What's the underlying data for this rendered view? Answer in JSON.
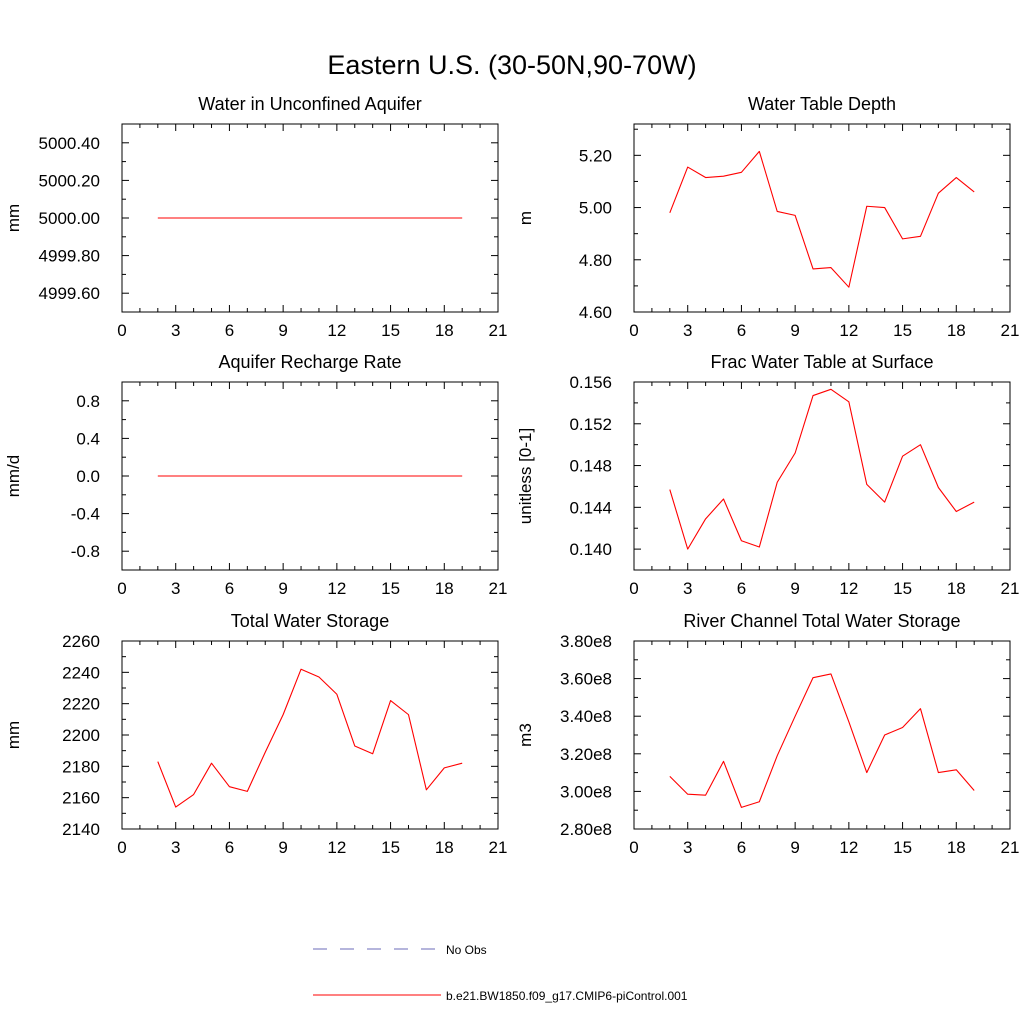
{
  "figure": {
    "title": "Eastern U.S. (30-50N,90-70W)"
  },
  "legend": {
    "entries": [
      {
        "label": "No Obs",
        "color": "#6b6bb8",
        "style": "dashed"
      },
      {
        "label": "b.e21.BW1850.f09_g17.CMIP6-piControl.001",
        "color": "#ff0000",
        "style": "solid"
      }
    ]
  },
  "chart_data": [
    {
      "type": "line",
      "title": "Water in Unconfined Aquifer",
      "xlabel": "",
      "ylabel": "mm",
      "xlim": [
        0,
        21
      ],
      "ylim": [
        4999.5,
        5000.5
      ],
      "xticks": [
        0,
        3,
        6,
        9,
        12,
        15,
        18,
        21
      ],
      "xtick_labels": [
        "0",
        "3",
        "6",
        "9",
        "12",
        "15",
        "18",
        "21"
      ],
      "yticks": [
        4999.6,
        4999.8,
        5000.0,
        5000.2,
        5000.4
      ],
      "ytick_labels": [
        "4999.60",
        "4999.80",
        "5000.00",
        "5000.20",
        "5000.40"
      ],
      "series": [
        {
          "name": "b.e21.BW1850.f09_g17.CMIP6-piControl.001",
          "color": "#ff0000",
          "x": [
            2,
            3,
            4,
            5,
            6,
            7,
            8,
            9,
            10,
            11,
            12,
            13,
            14,
            15,
            16,
            17,
            18,
            19
          ],
          "y": [
            5000,
            5000,
            5000,
            5000,
            5000,
            5000,
            5000,
            5000,
            5000,
            5000,
            5000,
            5000,
            5000,
            5000,
            5000,
            5000,
            5000,
            5000
          ]
        }
      ]
    },
    {
      "type": "line",
      "title": "Water Table Depth",
      "xlabel": "",
      "ylabel": "m",
      "xlim": [
        0,
        21
      ],
      "ylim": [
        4.6,
        5.32
      ],
      "xticks": [
        0,
        3,
        6,
        9,
        12,
        15,
        18,
        21
      ],
      "xtick_labels": [
        "0",
        "3",
        "6",
        "9",
        "12",
        "15",
        "18",
        "21"
      ],
      "yticks": [
        4.6,
        4.8,
        5.0,
        5.2
      ],
      "ytick_labels": [
        "4.60",
        "4.80",
        "5.00",
        "5.20"
      ],
      "series": [
        {
          "name": "b.e21.BW1850.f09_g17.CMIP6-piControl.001",
          "color": "#ff0000",
          "x": [
            2,
            3,
            4,
            5,
            6,
            7,
            8,
            9,
            10,
            11,
            12,
            13,
            14,
            15,
            16,
            17,
            18,
            19
          ],
          "y": [
            4.98,
            5.155,
            5.115,
            5.12,
            5.135,
            5.215,
            4.985,
            4.97,
            4.765,
            4.77,
            4.695,
            5.005,
            5.0,
            4.88,
            4.89,
            5.055,
            5.115,
            5.06
          ]
        }
      ]
    },
    {
      "type": "line",
      "title": "Aquifer Recharge Rate",
      "xlabel": "",
      "ylabel": "mm/d",
      "xlim": [
        0,
        21
      ],
      "ylim": [
        -1.0,
        1.0
      ],
      "xticks": [
        0,
        3,
        6,
        9,
        12,
        15,
        18,
        21
      ],
      "xtick_labels": [
        "0",
        "3",
        "6",
        "9",
        "12",
        "15",
        "18",
        "21"
      ],
      "yticks": [
        -0.8,
        -0.4,
        0.0,
        0.4,
        0.8
      ],
      "ytick_labels": [
        "-0.8",
        "-0.4",
        "0.0",
        "0.4",
        "0.8"
      ],
      "series": [
        {
          "name": "b.e21.BW1850.f09_g17.CMIP6-piControl.001",
          "color": "#ff0000",
          "x": [
            2,
            3,
            4,
            5,
            6,
            7,
            8,
            9,
            10,
            11,
            12,
            13,
            14,
            15,
            16,
            17,
            18,
            19
          ],
          "y": [
            0,
            0,
            0,
            0,
            0,
            0,
            0,
            0,
            0,
            0,
            0,
            0,
            0,
            0,
            0,
            0,
            0,
            0
          ]
        }
      ]
    },
    {
      "type": "line",
      "title": "Frac Water Table at Surface",
      "xlabel": "",
      "ylabel": "unitless [0-1]",
      "xlim": [
        0,
        21
      ],
      "ylim": [
        0.138,
        0.156
      ],
      "xticks": [
        0,
        3,
        6,
        9,
        12,
        15,
        18,
        21
      ],
      "xtick_labels": [
        "0",
        "3",
        "6",
        "9",
        "12",
        "15",
        "18",
        "21"
      ],
      "yticks": [
        0.14,
        0.144,
        0.148,
        0.152,
        0.156
      ],
      "ytick_labels": [
        "0.140",
        "0.144",
        "0.148",
        "0.152",
        "0.156"
      ],
      "series": [
        {
          "name": "b.e21.BW1850.f09_g17.CMIP6-piControl.001",
          "color": "#ff0000",
          "x": [
            2,
            3,
            4,
            5,
            6,
            7,
            8,
            9,
            10,
            11,
            12,
            13,
            14,
            15,
            16,
            17,
            18,
            19
          ],
          "y": [
            0.1457,
            0.14,
            0.1429,
            0.1448,
            0.1408,
            0.1402,
            0.1464,
            0.1492,
            0.1547,
            0.1553,
            0.1541,
            0.1462,
            0.1445,
            0.1489,
            0.15,
            0.1459,
            0.1436,
            0.1445
          ]
        }
      ]
    },
    {
      "type": "line",
      "title": "Total Water Storage",
      "xlabel": "",
      "ylabel": "mm",
      "xlim": [
        0,
        21
      ],
      "ylim": [
        2140,
        2260
      ],
      "xticks": [
        0,
        3,
        6,
        9,
        12,
        15,
        18,
        21
      ],
      "xtick_labels": [
        "0",
        "3",
        "6",
        "9",
        "12",
        "15",
        "18",
        "21"
      ],
      "yticks": [
        2140,
        2160,
        2180,
        2200,
        2220,
        2240,
        2260
      ],
      "ytick_labels": [
        "2140",
        "2160",
        "2180",
        "2200",
        "2220",
        "2240",
        "2260"
      ],
      "series": [
        {
          "name": "b.e21.BW1850.f09_g17.CMIP6-piControl.001",
          "color": "#ff0000",
          "x": [
            2,
            3,
            4,
            5,
            6,
            7,
            8,
            9,
            10,
            11,
            12,
            13,
            14,
            15,
            16,
            17,
            18,
            19
          ],
          "y": [
            2183,
            2154,
            2162,
            2182,
            2167,
            2164,
            2189,
            2213,
            2242,
            2237,
            2226,
            2193,
            2188,
            2222,
            2213,
            2165,
            2179,
            2182
          ]
        }
      ]
    },
    {
      "type": "line",
      "title": "River Channel Total Water Storage",
      "xlabel": "",
      "ylabel": "m3",
      "xlim": [
        0,
        21
      ],
      "ylim": [
        280000000.0,
        380000000.0
      ],
      "xticks": [
        0,
        3,
        6,
        9,
        12,
        15,
        18,
        21
      ],
      "xtick_labels": [
        "0",
        "3",
        "6",
        "9",
        "12",
        "15",
        "18",
        "21"
      ],
      "yticks": [
        280000000.0,
        300000000.0,
        320000000.0,
        340000000.0,
        360000000.0,
        380000000.0
      ],
      "ytick_labels": [
        "2.80e8",
        "3.00e8",
        "3.20e8",
        "3.40e8",
        "3.60e8",
        "3.80e8"
      ],
      "series": [
        {
          "name": "b.e21.BW1850.f09_g17.CMIP6-piControl.001",
          "color": "#ff0000",
          "x": [
            2,
            3,
            4,
            5,
            6,
            7,
            8,
            9,
            10,
            11,
            12,
            13,
            14,
            15,
            16,
            17,
            18,
            19
          ],
          "y": [
            308000000.0,
            298500000.0,
            298000000.0,
            316000000.0,
            291500000.0,
            294500000.0,
            319000000.0,
            340000000.0,
            360500000.0,
            362500000.0,
            337000000.0,
            310000000.0,
            330000000.0,
            334000000.0,
            344000000.0,
            310000000.0,
            311500000.0,
            300500000.0
          ]
        }
      ]
    }
  ]
}
